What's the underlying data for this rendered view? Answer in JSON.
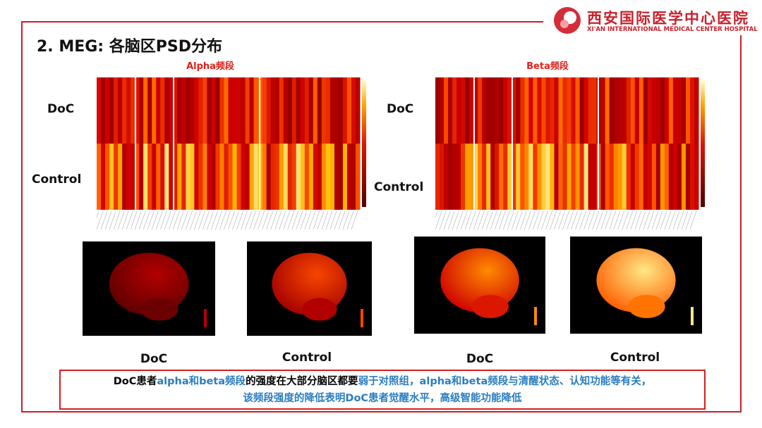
{
  "header": {
    "hospital_name": "西安国际医学中心医院",
    "hospital_name_en": "XI'AN INTERNATIONAL MEDICAL CENTER HOSPITAL",
    "title": "2. MEG: 各脑区PSD分布"
  },
  "heatmaps": [
    {
      "title": "Alpha频段",
      "rows": [
        "DoC",
        "Control"
      ]
    },
    {
      "title": "Beta频段",
      "rows": [
        "DoC",
        "Control"
      ]
    }
  ],
  "brains": [
    "DoC",
    "Control",
    "DoC",
    "Control"
  ],
  "conclusion": {
    "line1": [
      "DoC患者",
      "alpha和beta频段",
      "的强度在大部分脑区都要",
      "弱于对照组，alpha和beta频段与清醒状态、认知功能等有关，"
    ],
    "line2": "该频段强度的降低表明DoC患者觉醒水平，高级智能功能降低"
  }
}
